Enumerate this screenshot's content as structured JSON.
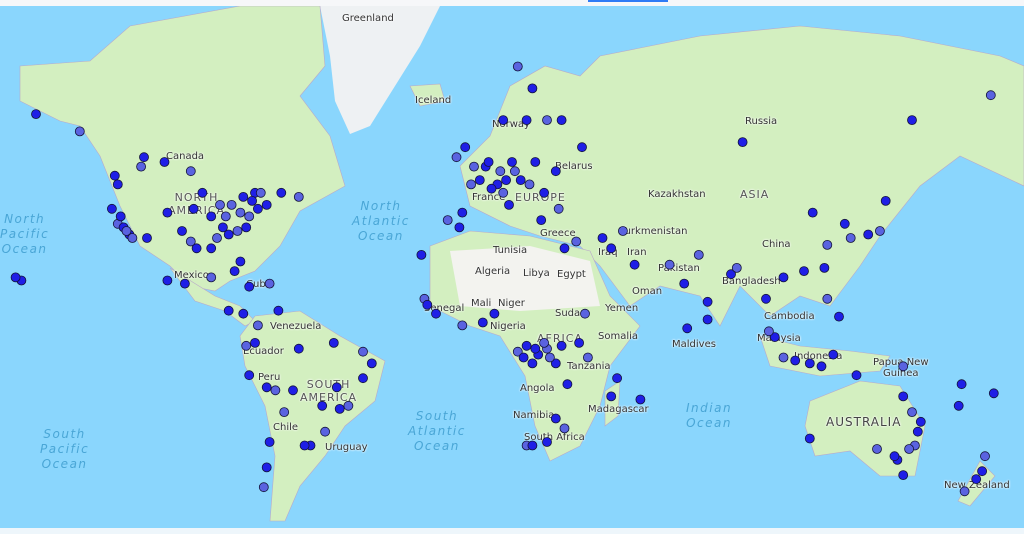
{
  "map": {
    "labels": {
      "greenland": "Greenland",
      "iceland": "Iceland",
      "norway": "Norway",
      "russia": "Russia",
      "canada": "Canada",
      "north_america": "NORTH\nAMERICA",
      "mexico": "Mexico",
      "cuba": "Cuba",
      "venezuela": "Venezuela",
      "ecuador": "Ecuador",
      "peru": "Peru",
      "south_america": "SOUTH\nAMERICA",
      "chile": "Chile",
      "uruguay": "Uruguay",
      "kazakhstan": "Kazakhstan",
      "asia": "ASIA",
      "china": "China",
      "turkmenistan": "Turkmenistan",
      "iraq": "Iraq",
      "iran": "Iran",
      "pakistan": "Pakistan",
      "bangladesh": "Bangladesh",
      "cambodia": "Cambodia",
      "malaysia": "Malaysia",
      "indonesia": "Indonesia",
      "maldives": "Maldives",
      "oman": "Oman",
      "yemen": "Yemen",
      "tunisia": "Tunisia",
      "algeria": "Algeria",
      "libya": "Libya",
      "egypt": "Egypt",
      "mali": "Mali",
      "niger": "Niger",
      "sudan": "Sudan",
      "senegal": "Senegal",
      "nigeria": "Nigeria",
      "africa": "AFRICA",
      "somalia": "Somalia",
      "tanzania": "Tanzania",
      "angola": "Angola",
      "namibia": "Namibia",
      "south_africa": "South Africa",
      "madagascar": "Madagascar",
      "greece": "Greece",
      "europe": "EUROPE",
      "belarus": "Belarus",
      "papua_new_guinea": "Papua New\nGuinea",
      "australia": "AUSTRALIA",
      "new_zealand": "New Zealand",
      "france": "France"
    },
    "oceans": {
      "north_pacific": "North\nPacific\nOcean",
      "north_atlantic": "North\nAtlantic\nOcean",
      "south_atlantic": "South\nAtlantic\nOcean",
      "south_pacific": "South\nPacific\nOcean",
      "indian": "Indian\nOcean"
    },
    "colors": {
      "marker": "#1f1fe6",
      "marker_faded": "#5a63e0",
      "marker_stroke": "#14143a",
      "water": "#8ad6fd",
      "land": "#d3efc0"
    },
    "markers_lonlat": [
      [
        -122,
        37
      ],
      [
        -118,
        34
      ],
      [
        -122,
        47
      ],
      [
        -117,
        33
      ],
      [
        -112,
        33
      ],
      [
        -105,
        40
      ],
      [
        -97,
        32
      ],
      [
        -95,
        30
      ],
      [
        -90,
        30
      ],
      [
        -87,
        42
      ],
      [
        -84,
        34
      ],
      [
        -80,
        26
      ],
      [
        -77,
        39
      ],
      [
        -74,
        41
      ],
      [
        -71,
        42
      ],
      [
        -83,
        42
      ],
      [
        -93,
        45
      ],
      [
        -90,
        39
      ],
      [
        -81,
        35
      ],
      [
        -86,
        36
      ],
      [
        -96,
        41
      ],
      [
        -80,
        40
      ],
      [
        -75,
        45
      ],
      [
        -79,
        44
      ],
      [
        -73,
        45
      ],
      [
        -66,
        45
      ],
      [
        -123,
        49
      ],
      [
        -114,
        51
      ],
      [
        -113,
        53
      ],
      [
        -106,
        52
      ],
      [
        -97,
        50
      ],
      [
        -120,
        36
      ],
      [
        -121,
        39
      ],
      [
        -119,
        35
      ],
      [
        -124,
        41
      ],
      [
        -100,
        35
      ],
      [
        -88,
        33
      ],
      [
        -78,
        36
      ],
      [
        -76,
        43
      ],
      [
        -85,
        39
      ],
      [
        -150,
        61
      ],
      [
        -165,
        64
      ],
      [
        -135,
        58
      ],
      [
        -155,
        20
      ],
      [
        -157,
        21
      ],
      [
        -60,
        44
      ],
      [
        -105,
        20
      ],
      [
        -99,
        19
      ],
      [
        -90,
        21
      ],
      [
        -82,
        23
      ],
      [
        -77,
        18
      ],
      [
        -70,
        19
      ],
      [
        -84,
        10
      ],
      [
        -79,
        9
      ],
      [
        -74,
        5
      ],
      [
        -67,
        10
      ],
      [
        -75,
        -1
      ],
      [
        -78,
        -2
      ],
      [
        -77,
        -12
      ],
      [
        -71,
        -16
      ],
      [
        -68,
        -17
      ],
      [
        -60,
        -3
      ],
      [
        -48,
        -1
      ],
      [
        -38,
        -4
      ],
      [
        -35,
        -8
      ],
      [
        -38,
        -13
      ],
      [
        -43,
        -22
      ],
      [
        -46,
        -23
      ],
      [
        -47,
        -16
      ],
      [
        -51,
        -30
      ],
      [
        -56,
        -34
      ],
      [
        -58,
        -34
      ],
      [
        -65,
        -24
      ],
      [
        -70,
        -33
      ],
      [
        -71,
        -40
      ],
      [
        -72,
        -45
      ],
      [
        -52,
        -22
      ],
      [
        -62,
        -17
      ],
      [
        0,
        51
      ],
      [
        2,
        48
      ],
      [
        -4,
        40
      ],
      [
        -9,
        38
      ],
      [
        4,
        51
      ],
      [
        5,
        52
      ],
      [
        9,
        50
      ],
      [
        13,
        52
      ],
      [
        12,
        42
      ],
      [
        10,
        45
      ],
      [
        16,
        48
      ],
      [
        21,
        52
      ],
      [
        19,
        47
      ],
      [
        24,
        45
      ],
      [
        23,
        38
      ],
      [
        29,
        41
      ],
      [
        18,
        60
      ],
      [
        10,
        60
      ],
      [
        25,
        60
      ],
      [
        30,
        60
      ],
      [
        37,
        55
      ],
      [
        -6,
        53
      ],
      [
        -3,
        55
      ],
      [
        8,
        47
      ],
      [
        14,
        50
      ],
      [
        28,
        50
      ],
      [
        20,
        65
      ],
      [
        15,
        68
      ],
      [
        6,
        46
      ],
      [
        11,
        48
      ],
      [
        -1,
        47
      ],
      [
        -5,
        36
      ],
      [
        -18,
        28
      ],
      [
        35,
        32
      ],
      [
        31,
        30
      ],
      [
        44,
        33
      ],
      [
        51,
        35
      ],
      [
        55,
        25
      ],
      [
        47,
        30
      ],
      [
        -17,
        14
      ],
      [
        -16,
        12
      ],
      [
        -13,
        9
      ],
      [
        -4,
        5
      ],
      [
        3,
        6
      ],
      [
        7,
        9
      ],
      [
        15,
        -4
      ],
      [
        18,
        -2
      ],
      [
        22,
        -5
      ],
      [
        25,
        -3
      ],
      [
        28,
        -8
      ],
      [
        20,
        -8
      ],
      [
        24,
        -1
      ],
      [
        17,
        -6
      ],
      [
        21,
        -3
      ],
      [
        26,
        -6
      ],
      [
        30,
        -2
      ],
      [
        36,
        -1
      ],
      [
        39,
        -6
      ],
      [
        32,
        -15
      ],
      [
        28,
        -26
      ],
      [
        18,
        -34
      ],
      [
        20,
        -34
      ],
      [
        25,
        -33
      ],
      [
        31,
        -29
      ],
      [
        47,
        -19
      ],
      [
        57,
        -20
      ],
      [
        38,
        9
      ],
      [
        49,
        -13
      ],
      [
        72,
        19
      ],
      [
        77,
        28
      ],
      [
        80,
        13
      ],
      [
        88,
        22
      ],
      [
        90,
        24
      ],
      [
        100,
        14
      ],
      [
        103,
        1
      ],
      [
        106,
        -6
      ],
      [
        110,
        -7
      ],
      [
        115,
        -8
      ],
      [
        121,
        14
      ],
      [
        125,
        8
      ],
      [
        120,
        24
      ],
      [
        121,
        31
      ],
      [
        116,
        40
      ],
      [
        127,
        37
      ],
      [
        139,
        35
      ],
      [
        135,
        34
      ],
      [
        141,
        43
      ],
      [
        129,
        33
      ],
      [
        106,
        21
      ],
      [
        113,
        23
      ],
      [
        67,
        25
      ],
      [
        92,
        56
      ],
      [
        150,
        60
      ],
      [
        177,
        64
      ],
      [
        80,
        7
      ],
      [
        73,
        4
      ],
      [
        101,
        3
      ],
      [
        123,
        -5
      ],
      [
        119,
        -9
      ],
      [
        151,
        -34
      ],
      [
        153,
        -27
      ],
      [
        145,
        -38
      ],
      [
        138,
        -35
      ],
      [
        115,
        -32
      ],
      [
        147,
        -19
      ],
      [
        149,
        -35
      ],
      [
        147,
        -42
      ],
      [
        131,
        -12
      ],
      [
        150,
        -24
      ],
      [
        152,
        -30
      ],
      [
        144,
        -37
      ],
      [
        175,
        -37
      ],
      [
        174,
        -41
      ],
      [
        172,
        -43
      ],
      [
        168,
        -46
      ],
      [
        166,
        -22
      ],
      [
        178,
        -18
      ],
      [
        147,
        -9
      ],
      [
        167,
        -15
      ]
    ]
  }
}
